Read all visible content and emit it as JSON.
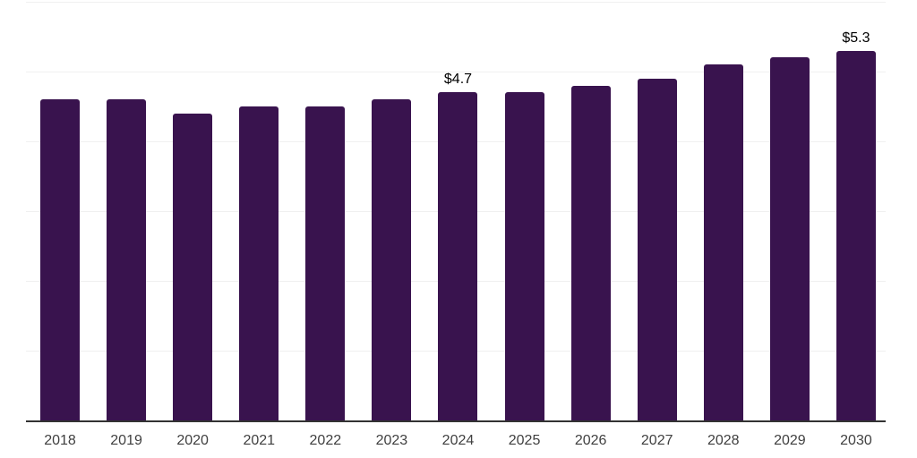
{
  "chart_data": {
    "type": "bar",
    "categories": [
      "2018",
      "2019",
      "2020",
      "2021",
      "2022",
      "2023",
      "2024",
      "2025",
      "2026",
      "2027",
      "2028",
      "2029",
      "2030"
    ],
    "values": [
      4.6,
      4.6,
      4.4,
      4.5,
      4.5,
      4.6,
      4.7,
      4.7,
      4.8,
      4.9,
      5.1,
      5.2,
      5.3
    ],
    "point_labels": [
      "",
      "",
      "",
      "",
      "",
      "",
      "$4.7",
      "",
      "",
      "",
      "",
      "",
      "$5.3"
    ],
    "title": "",
    "xlabel": "",
    "ylabel": "",
    "ylim": [
      0,
      6
    ],
    "grid": "horizontal",
    "legend": "none",
    "bar_color": "#39134e",
    "axis_color": "#333333",
    "gridline_color": "#f0f0f0",
    "value_label_color": "#000000",
    "tick_label_color": "#404040"
  }
}
